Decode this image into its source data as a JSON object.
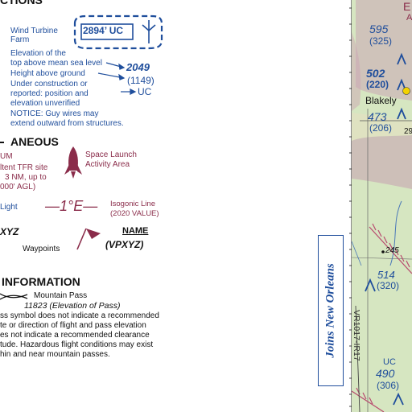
{
  "legend": {
    "top_cut_heading": "CTIONS",
    "wind_turbine": {
      "label": "Wind Turbine\nFarm",
      "box_value": "2894’ UC",
      "icon": "wind-turbine-icon"
    },
    "elevation_notes": [
      "Elevation of the",
      "top above mean sea level",
      "Height above ground",
      "Under construction or",
      "reported: position and",
      "elevation unverified",
      "NOTICE: Guy wires may",
      "extend outward from structures."
    ],
    "elevation_values": {
      "msl": "2049",
      "agl": "(1149)",
      "uc": "UC"
    },
    "misc_heading": "ANEOUS",
    "tfr_lines": [
      "UM",
      "ltent TFR site",
      "3 NM, up to",
      "000' AGL)"
    ],
    "space_launch": {
      "line1": "Space Launch",
      "line2": "Activity Area",
      "icon": "rocket-icon"
    },
    "light_label": "Light",
    "isogonic": {
      "symbol": "—1°E—",
      "line1": "Isogonic Line",
      "line2": "(2020 VALUE)"
    },
    "waypoint": {
      "code": "XYZ",
      "label": "Waypoints",
      "name_label": "NAME",
      "name_code": "(VPXYZ)",
      "icon": "flag-icon"
    },
    "info_heading": "INFORMATION",
    "mountain_pass": {
      "label": "Mountain Pass",
      "value": "11823",
      "value_note": "(Elevation of Pass)"
    },
    "pass_notes": [
      "ss symbol does not indicate a recommended",
      "te or direction of flight and pass elevation",
      "es not indicate a recommended clearance",
      "tude. Hazardous flight conditions may exist",
      "hin and near mountain passes."
    ]
  },
  "map": {
    "town": "Blakely",
    "obstacles": [
      {
        "msl": "595",
        "agl": "(325)"
      },
      {
        "msl": "502",
        "agl": "(220)"
      },
      {
        "msl": "473",
        "agl": "(206)"
      },
      {
        "msl": "514",
        "agl": "(320)"
      },
      {
        "msl": "490",
        "agl": "(306)",
        "uc": "UC"
      }
    ],
    "spot_elevation": "245",
    "partial_label": "29",
    "route": "VR1017-IR17",
    "joins_label": "Joins New Orleans",
    "top_red_fragments": [
      "E",
      "A"
    ],
    "colors": {
      "water_blue": "#1f4e9c",
      "maroon": "#8a2c4a",
      "map_green": "#d6e6c1",
      "restricted_pink": "#c8a6b6"
    }
  }
}
